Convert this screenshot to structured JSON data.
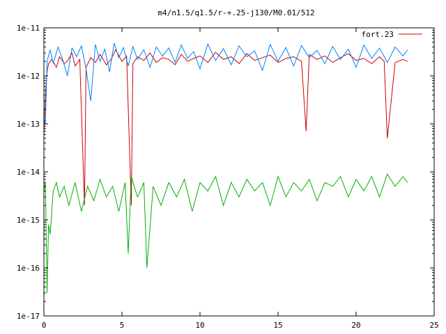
{
  "chart_data": {
    "type": "line",
    "title": "m4/n1.5/q1.5/r-+.25-j130/M0.01/512",
    "xlabel": "",
    "ylabel": "",
    "xlim": [
      0,
      25
    ],
    "ylim": [
      1e-17,
      1e-11
    ],
    "ylog": true,
    "grid": false,
    "legend_position": "top-right",
    "x_ticks": [
      0,
      5,
      10,
      15,
      20,
      25
    ],
    "x_tick_labels": [
      "0",
      "5",
      "10",
      "15",
      "20",
      "25"
    ],
    "y_ticks": [
      1e-17,
      1e-16,
      1e-15,
      1e-14,
      1e-13,
      1e-12,
      1e-11
    ],
    "y_tick_labels": [
      "1e-17",
      "1e-16",
      "1e-15",
      "1e-14",
      "1e-13",
      "1e-12",
      "1e-11"
    ],
    "series": [
      {
        "name": "fort.23",
        "color": "#cc0000",
        "x": [
          0.0,
          0.1,
          0.2,
          0.3,
          0.5,
          0.8,
          1.0,
          1.3,
          1.5,
          1.8,
          2.0,
          2.3,
          2.6,
          2.7,
          3.0,
          3.3,
          3.6,
          4.0,
          4.3,
          4.6,
          5.0,
          5.3,
          5.6,
          5.7,
          6.0,
          6.4,
          6.8,
          7.2,
          7.6,
          8.0,
          8.4,
          8.8,
          9.2,
          9.6,
          10.0,
          10.5,
          11.0,
          11.5,
          12.0,
          12.5,
          13.0,
          13.5,
          14.0,
          14.5,
          15.0,
          15.5,
          16.0,
          16.5,
          16.8,
          17.0,
          17.5,
          18.0,
          18.5,
          19.0,
          19.5,
          20.0,
          20.5,
          21.0,
          21.5,
          21.8,
          22.0,
          22.5,
          23.0,
          23.3
        ],
        "y": [
          6e-14,
          4e-13,
          1.2e-12,
          1.8e-12,
          2.2e-12,
          1.5e-12,
          2.5e-12,
          1.8e-12,
          2e-12,
          3e-12,
          1.6e-12,
          2.2e-12,
          2e-15,
          1.5e-12,
          2.4e-12,
          1.9e-12,
          2.8e-12,
          1.7e-12,
          2.2e-12,
          3.5e-12,
          2e-12,
          2.6e-12,
          2e-15,
          1.8e-12,
          2.5e-12,
          2.1e-12,
          3e-12,
          1.9e-12,
          2.4e-12,
          2.2e-12,
          1.7e-12,
          2.8e-12,
          2e-12,
          2.3e-12,
          2.6e-12,
          1.9e-12,
          3.1e-12,
          2.2e-12,
          2.5e-12,
          1.8e-12,
          2.9e-12,
          2.1e-12,
          2.4e-12,
          2.7e-12,
          1.9e-12,
          2.3e-12,
          2.5e-12,
          2e-12,
          7e-14,
          2.8e-12,
          2.2e-12,
          2.6e-12,
          1.9e-12,
          2.4e-12,
          2.9e-12,
          2.1e-12,
          2.3e-12,
          1.8e-12,
          2.5e-12,
          2e-12,
          5e-14,
          1.9e-12,
          2.2e-12,
          2e-12
        ]
      },
      {
        "name": "",
        "color": "#0080ff",
        "x": [
          0.0,
          0.1,
          0.2,
          0.4,
          0.6,
          0.9,
          1.2,
          1.5,
          1.8,
          2.1,
          2.4,
          2.7,
          3.0,
          3.3,
          3.6,
          3.9,
          4.2,
          4.5,
          4.8,
          5.1,
          5.4,
          5.7,
          6.0,
          6.4,
          6.8,
          7.2,
          7.6,
          8.0,
          8.4,
          8.8,
          9.2,
          9.6,
          10.0,
          10.5,
          11.0,
          11.5,
          12.0,
          12.5,
          13.0,
          13.5,
          14.0,
          14.5,
          15.0,
          15.5,
          16.0,
          16.5,
          17.0,
          17.5,
          18.0,
          18.5,
          19.0,
          19.5,
          20.0,
          20.5,
          21.0,
          21.5,
          22.0,
          22.5,
          23.0,
          23.3
        ],
        "y": [
          1.5e-13,
          1e-13,
          2e-12,
          3.5e-12,
          1.8e-12,
          4e-12,
          2.2e-12,
          1e-12,
          3.8e-12,
          2.5e-12,
          4.2e-12,
          1.4e-12,
          3e-13,
          4.5e-12,
          2e-12,
          3.6e-12,
          1.2e-12,
          4.8e-12,
          2.4e-12,
          3.9e-12,
          1.6e-12,
          4.1e-12,
          2.2e-12,
          3.5e-12,
          1.5e-12,
          4e-12,
          2.6e-12,
          3.8e-12,
          1.9e-12,
          4.4e-12,
          2.3e-12,
          3.2e-12,
          1.4e-12,
          4.6e-12,
          2.1e-12,
          3.7e-12,
          1.7e-12,
          4.2e-12,
          2.5e-12,
          3.3e-12,
          1.3e-12,
          4.5e-12,
          2e-12,
          3.9e-12,
          1.6e-12,
          4.3e-12,
          2.4e-12,
          3.4e-12,
          1.8e-12,
          4.1e-12,
          2.2e-12,
          3.6e-12,
          1.5e-12,
          4.4e-12,
          2.3e-12,
          3.8e-12,
          1.9e-12,
          4e-12,
          2.6e-12,
          3.5e-12
        ]
      },
      {
        "name": "",
        "color": "#00b000",
        "x": [
          0.0,
          0.1,
          0.2,
          0.3,
          0.4,
          0.6,
          0.8,
          1.0,
          1.3,
          1.6,
          2.0,
          2.4,
          2.8,
          3.2,
          3.6,
          4.0,
          4.4,
          4.8,
          5.2,
          5.4,
          5.6,
          6.0,
          6.4,
          6.6,
          7.0,
          7.5,
          8.0,
          8.5,
          9.0,
          9.5,
          10.0,
          10.5,
          11.0,
          11.5,
          12.0,
          12.5,
          13.0,
          13.5,
          14.0,
          14.5,
          15.0,
          15.5,
          16.0,
          16.5,
          17.0,
          17.5,
          18.0,
          18.5,
          19.0,
          19.5,
          20.0,
          20.5,
          21.0,
          21.5,
          22.0,
          22.5,
          23.0,
          23.3
        ],
        "y": [
          4e-15,
          6e-15,
          3e-17,
          8e-16,
          5e-16,
          4e-15,
          6e-15,
          3e-15,
          5e-15,
          2e-15,
          6e-15,
          1.5e-15,
          5e-15,
          2.5e-15,
          7e-15,
          3e-15,
          5e-15,
          1.5e-15,
          6e-15,
          2e-16,
          8e-15,
          3e-15,
          6e-15,
          1e-16,
          5e-15,
          2e-15,
          6e-15,
          3e-15,
          7e-15,
          1.5e-15,
          6e-15,
          4e-15,
          8e-15,
          2e-15,
          6e-15,
          3e-15,
          7e-15,
          4e-15,
          6e-15,
          2e-15,
          8e-15,
          3e-15,
          6e-15,
          4e-15,
          7e-15,
          2.5e-15,
          6e-15,
          5e-15,
          8e-15,
          3e-15,
          7e-15,
          4e-15,
          8e-15,
          3e-15,
          9e-15,
          5e-15,
          8e-15,
          6e-15
        ]
      }
    ]
  }
}
